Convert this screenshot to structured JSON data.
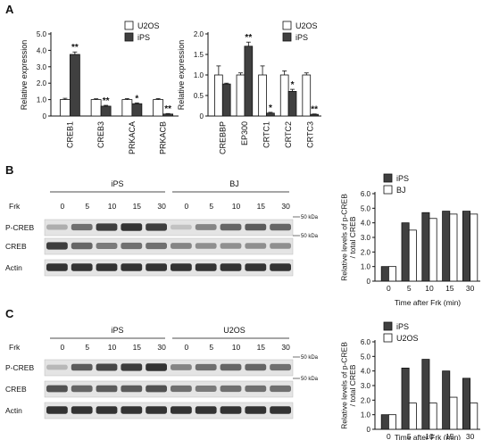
{
  "panels": {
    "A": {
      "letter": "A"
    },
    "B": {
      "letter": "B"
    },
    "C": {
      "letter": "C"
    }
  },
  "chart_data": [
    {
      "id": "A1",
      "type": "bar",
      "panel": "A",
      "categories": [
        "CREB1",
        "CREB3",
        "PRKACA",
        "PRKACB"
      ],
      "series": [
        {
          "name": "U2OS",
          "color": "#ffffff",
          "values": [
            1.0,
            1.0,
            1.0,
            1.0
          ],
          "errors": [
            0.08,
            0.05,
            0.06,
            0.06
          ]
        },
        {
          "name": "iPS",
          "color": "#404040",
          "values": [
            3.75,
            0.6,
            0.75,
            0.12
          ],
          "errors": [
            0.15,
            0.05,
            0.05,
            0.03
          ]
        }
      ],
      "significance": [
        "**",
        "**",
        "*",
        "**"
      ],
      "ylabel": "Relative expression",
      "ylim": [
        0,
        5.0
      ],
      "yticks": [
        "0",
        "1.0",
        "2.0",
        "3.0",
        "4.0",
        "5.0"
      ],
      "legend": "top-right"
    },
    {
      "id": "A2",
      "type": "bar",
      "panel": "A",
      "categories": [
        "CREBBP",
        "EP300",
        "CRTC1",
        "CRTC2",
        "CRTC3"
      ],
      "series": [
        {
          "name": "U2OS",
          "color": "#ffffff",
          "values": [
            1.0,
            1.0,
            1.0,
            1.0,
            1.0
          ],
          "errors": [
            0.22,
            0.05,
            0.22,
            0.1,
            0.05
          ]
        },
        {
          "name": "iPS",
          "color": "#404040",
          "values": [
            0.78,
            1.7,
            0.07,
            0.6,
            0.04
          ],
          "errors": [
            0.02,
            0.1,
            0.02,
            0.05,
            0.01
          ]
        }
      ],
      "significance": [
        "",
        "**",
        "*",
        "*",
        "**"
      ],
      "ylabel": "Relative expression",
      "ylim": [
        0,
        2.0
      ],
      "yticks": [
        "0",
        "0.5",
        "1.0",
        "1.5",
        "2.0"
      ],
      "legend": "top-right"
    },
    {
      "id": "B",
      "type": "bar",
      "panel": "B",
      "categories": [
        "0",
        "5",
        "10",
        "15",
        "30"
      ],
      "series": [
        {
          "name": "iPS",
          "color": "#404040",
          "values": [
            1.0,
            4.0,
            4.7,
            4.8,
            4.8
          ]
        },
        {
          "name": "BJ",
          "color": "#ffffff",
          "values": [
            1.0,
            3.5,
            4.3,
            4.6,
            4.6
          ]
        }
      ],
      "ylabel": "Relative levels of p-CREB / total CREB",
      "xlabel": "Time after Frk (min)",
      "ylim": [
        0,
        6.0
      ],
      "yticks": [
        "0",
        "1.0",
        "2.0",
        "3.0",
        "4.0",
        "5.0",
        "6.0"
      ],
      "legend": "top-left"
    },
    {
      "id": "C",
      "type": "bar",
      "panel": "C",
      "categories": [
        "0",
        "5",
        "10",
        "15",
        "30"
      ],
      "series": [
        {
          "name": "iPS",
          "color": "#404040",
          "values": [
            1.0,
            4.2,
            4.8,
            4.0,
            3.5
          ]
        },
        {
          "name": "U2OS",
          "color": "#ffffff",
          "values": [
            1.0,
            1.8,
            1.8,
            2.2,
            1.8
          ]
        }
      ],
      "ylabel": "Relative levels of p-CREB / total CREB",
      "xlabel": "Time after Frk (min)",
      "ylim": [
        0,
        6.0
      ],
      "yticks": [
        "0",
        "1.0",
        "2.0",
        "3.0",
        "4.0",
        "5.0",
        "6.0"
      ],
      "legend": "top-left"
    }
  ],
  "blots": {
    "B": {
      "group1": "iPS",
      "group2": "BJ",
      "time_label": "Frk",
      "times": [
        "0",
        "5",
        "10",
        "15",
        "30",
        "0",
        "5",
        "10",
        "15",
        "30"
      ],
      "rows": [
        {
          "label": "P-CREB",
          "marker": "50 kDa",
          "intensity": [
            0.25,
            0.55,
            0.8,
            0.85,
            0.8,
            0.15,
            0.45,
            0.6,
            0.65,
            0.6
          ]
        },
        {
          "label": "CREB",
          "marker": "50 kDa",
          "intensity": [
            0.8,
            0.6,
            0.5,
            0.55,
            0.55,
            0.45,
            0.4,
            0.4,
            0.4,
            0.4
          ]
        },
        {
          "label": "Actin",
          "marker": "",
          "intensity": [
            0.85,
            0.85,
            0.85,
            0.85,
            0.85,
            0.85,
            0.85,
            0.85,
            0.85,
            0.85
          ]
        }
      ]
    },
    "C": {
      "group1": "iPS",
      "group2": "U2OS",
      "time_label": "Frk",
      "times": [
        "0",
        "5",
        "10",
        "15",
        "30",
        "0",
        "5",
        "10",
        "15",
        "30"
      ],
      "rows": [
        {
          "label": "P-CREB",
          "marker": "50 kDa",
          "intensity": [
            0.2,
            0.65,
            0.75,
            0.8,
            0.85,
            0.45,
            0.55,
            0.6,
            0.6,
            0.55
          ]
        },
        {
          "label": "CREB",
          "marker": "50 kDa",
          "intensity": [
            0.7,
            0.6,
            0.65,
            0.65,
            0.7,
            0.55,
            0.5,
            0.55,
            0.55,
            0.55
          ]
        },
        {
          "label": "Actin",
          "marker": "",
          "intensity": [
            0.85,
            0.85,
            0.85,
            0.85,
            0.85,
            0.85,
            0.85,
            0.85,
            0.85,
            0.85
          ]
        }
      ]
    }
  }
}
